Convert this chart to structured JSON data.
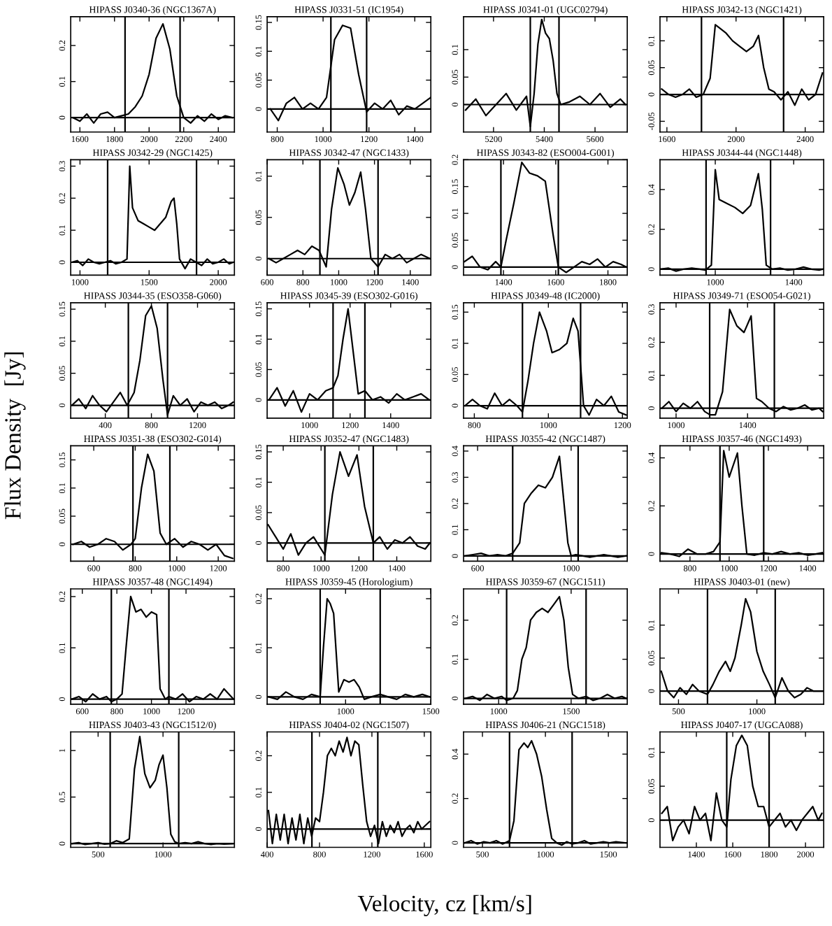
{
  "chart_data": [
    {
      "type": "line",
      "title": "HIPASS J0340-36 (NGC1367A)",
      "xlim": [
        1547,
        2493
      ],
      "xticks": [
        1600,
        1800,
        2000,
        2200,
        2400
      ],
      "ylim": [
        -0.04,
        0.28
      ],
      "yticks": [
        0,
        0.1,
        0.2
      ],
      "ref_lines": [
        {
          "axis": "x",
          "value": 1861
        },
        {
          "axis": "x",
          "value": 2179
        },
        {
          "axis": "y",
          "value": 0
        }
      ],
      "series": [
        {
          "color": "#000000",
          "x": [
            1560,
            1600,
            1640,
            1680,
            1720,
            1760,
            1800,
            1840,
            1880,
            1920,
            1960,
            2000,
            2040,
            2080,
            2120,
            2160,
            2200,
            2240,
            2280,
            2320,
            2360,
            2400,
            2440,
            2480
          ],
          "values": [
            0.0,
            -0.01,
            0.01,
            -0.015,
            0.01,
            0.015,
            0.0,
            0.005,
            0.01,
            0.03,
            0.06,
            0.12,
            0.22,
            0.26,
            0.19,
            0.06,
            0.0,
            -0.015,
            0.005,
            -0.01,
            0.01,
            -0.005,
            0.005,
            0.0
          ]
        }
      ]
    },
    {
      "type": "line",
      "title": "HIPASS J0331-51 (IC1954)",
      "xlim": [
        756,
        1470
      ],
      "xticks": [
        800,
        1000,
        1200,
        1400
      ],
      "ylim": [
        -0.04,
        0.16
      ],
      "yticks": [
        0,
        0.05,
        0.1,
        0.15
      ],
      "ref_lines": [
        {
          "axis": "x",
          "value": 1034
        },
        {
          "axis": "x",
          "value": 1190
        },
        {
          "axis": "y",
          "value": 0
        }
      ],
      "series": [
        {
          "color": "#000000",
          "x": [
            770,
            805,
            840,
            875,
            910,
            945,
            980,
            1015,
            1050,
            1085,
            1120,
            1155,
            1190,
            1225,
            1260,
            1295,
            1330,
            1365,
            1400,
            1435,
            1470
          ],
          "values": [
            0.0,
            -0.02,
            0.01,
            0.02,
            0.0,
            0.01,
            0.0,
            0.02,
            0.12,
            0.145,
            0.14,
            0.06,
            -0.005,
            0.01,
            0.0,
            0.015,
            -0.01,
            0.005,
            0.0,
            0.01,
            0.02
          ]
        }
      ]
    },
    {
      "type": "line",
      "title": "HIPASS J0341-01 (UGC02794)",
      "xlim": [
        5082,
        5727
      ],
      "xticks": [
        5200,
        5400,
        5600
      ],
      "ylim": [
        -0.05,
        0.16
      ],
      "yticks": [
        0,
        0.05,
        0.1
      ],
      "ref_lines": [
        {
          "axis": "x",
          "value": 5345
        },
        {
          "axis": "x",
          "value": 5458
        },
        {
          "axis": "y",
          "value": 0
        }
      ],
      "series": [
        {
          "color": "#000000",
          "x": [
            5090,
            5130,
            5170,
            5210,
            5250,
            5290,
            5330,
            5345,
            5360,
            5375,
            5390,
            5405,
            5420,
            5435,
            5450,
            5465,
            5500,
            5540,
            5580,
            5620,
            5660,
            5700,
            5720
          ],
          "values": [
            -0.01,
            0.01,
            -0.02,
            0.0,
            0.02,
            -0.01,
            0.015,
            -0.04,
            0.02,
            0.11,
            0.155,
            0.13,
            0.12,
            0.08,
            0.02,
            0.0,
            0.005,
            0.015,
            0.0,
            0.02,
            -0.005,
            0.01,
            0.0
          ]
        }
      ]
    },
    {
      "type": "line",
      "title": "HIPASS J0342-13 (NGC1421)",
      "xlim": [
        1560,
        2507
      ],
      "xticks": [
        1600,
        2000,
        2400
      ],
      "ylim": [
        -0.07,
        0.145
      ],
      "yticks": [
        -0.05,
        0,
        0.05,
        0.1
      ],
      "ref_lines": [
        {
          "axis": "x",
          "value": 1800
        },
        {
          "axis": "x",
          "value": 2275
        },
        {
          "axis": "y",
          "value": 0
        }
      ],
      "series": [
        {
          "color": "#000000",
          "x": [
            1570,
            1610,
            1650,
            1690,
            1730,
            1770,
            1810,
            1850,
            1880,
            1900,
            1940,
            1980,
            2020,
            2060,
            2100,
            2130,
            2160,
            2190,
            2220,
            2260,
            2300,
            2340,
            2380,
            2420,
            2460,
            2500
          ],
          "values": [
            0.01,
            0.0,
            -0.005,
            0.0,
            0.01,
            -0.005,
            0.0,
            0.03,
            0.13,
            0.125,
            0.115,
            0.1,
            0.09,
            0.08,
            0.09,
            0.11,
            0.05,
            0.01,
            0.005,
            -0.01,
            0.005,
            -0.02,
            0.01,
            -0.01,
            0.0,
            0.04
          ]
        }
      ]
    },
    {
      "type": "line",
      "title": "HIPASS J0342-29 (NGC1425)",
      "xlim": [
        933,
        2117
      ],
      "xticks": [
        1000,
        1500,
        2000
      ],
      "ylim": [
        -0.04,
        0.32
      ],
      "yticks": [
        0,
        0.1,
        0.2,
        0.3
      ],
      "ref_lines": [
        {
          "axis": "x",
          "value": 1200
        },
        {
          "axis": "x",
          "value": 1843
        },
        {
          "axis": "y",
          "value": 0
        }
      ],
      "series": [
        {
          "color": "#000000",
          "x": [
            940,
            980,
            1020,
            1060,
            1100,
            1140,
            1180,
            1220,
            1260,
            1300,
            1340,
            1360,
            1380,
            1420,
            1460,
            1500,
            1540,
            1580,
            1620,
            1660,
            1680,
            1700,
            1720,
            1760,
            1800,
            1840,
            1880,
            1920,
            1960,
            2000,
            2040,
            2080,
            2110
          ],
          "values": [
            0.0,
            0.005,
            -0.01,
            0.01,
            0.0,
            -0.005,
            0.0,
            0.005,
            -0.005,
            0.0,
            0.01,
            0.3,
            0.17,
            0.13,
            0.12,
            0.11,
            0.1,
            0.12,
            0.14,
            0.19,
            0.2,
            0.12,
            0.01,
            -0.02,
            0.01,
            0.0,
            -0.01,
            0.01,
            -0.005,
            0.0,
            0.01,
            -0.005,
            0.0
          ]
        }
      ]
    },
    {
      "type": "line",
      "title": "HIPASS J0342-47 (NGC1433)",
      "xlim": [
        600,
        1515
      ],
      "xticks": [
        600,
        800,
        1000,
        1200,
        1400
      ],
      "ylim": [
        -0.02,
        0.12
      ],
      "yticks": [
        0,
        0.05,
        0.1
      ],
      "ref_lines": [
        {
          "axis": "x",
          "value": 895
        },
        {
          "axis": "x",
          "value": 1220
        },
        {
          "axis": "y",
          "value": 0
        }
      ],
      "series": [
        {
          "color": "#000000",
          "x": [
            610,
            650,
            690,
            730,
            770,
            810,
            850,
            890,
            930,
            960,
            995,
            1030,
            1060,
            1090,
            1123,
            1150,
            1180,
            1220,
            1260,
            1300,
            1340,
            1380,
            1420,
            1460,
            1510
          ],
          "values": [
            0.0,
            -0.005,
            0.0,
            0.005,
            0.01,
            0.005,
            0.015,
            0.01,
            -0.01,
            0.06,
            0.11,
            0.09,
            0.065,
            0.08,
            0.105,
            0.06,
            0.0,
            -0.01,
            0.005,
            0.0,
            0.005,
            -0.005,
            0.0,
            0.005,
            0.0
          ]
        }
      ]
    },
    {
      "type": "line",
      "title": "HIPASS J0343-82 (ESO004-G001)",
      "xlim": [
        1247,
        1874
      ],
      "xticks": [
        1400,
        1600,
        1800
      ],
      "ylim": [
        -0.015,
        0.2
      ],
      "yticks": [
        0,
        0.05,
        0.1,
        0.15,
        0.2
      ],
      "ref_lines": [
        {
          "axis": "x",
          "value": 1390
        },
        {
          "axis": "x",
          "value": 1610
        },
        {
          "axis": "y",
          "value": 0
        }
      ],
      "series": [
        {
          "color": "#000000",
          "x": [
            1250,
            1280,
            1310,
            1340,
            1370,
            1390,
            1410,
            1440,
            1470,
            1500,
            1530,
            1560,
            1590,
            1610,
            1640,
            1670,
            1700,
            1730,
            1760,
            1790,
            1820,
            1850,
            1870
          ],
          "values": [
            0.01,
            0.02,
            0.0,
            -0.005,
            0.01,
            0.0,
            0.05,
            0.12,
            0.195,
            0.175,
            0.17,
            0.16,
            0.06,
            0.0,
            -0.01,
            0.0,
            0.01,
            0.005,
            0.015,
            0.0,
            0.01,
            0.005,
            0.0
          ]
        }
      ]
    },
    {
      "type": "line",
      "title": "HIPASS J0344-44 (NGC1448)",
      "xlim": [
        718,
        1553
      ],
      "xticks": [
        1000,
        1400
      ],
      "ylim": [
        -0.03,
        0.55
      ],
      "yticks": [
        0,
        0.2,
        0.4
      ],
      "ref_lines": [
        {
          "axis": "x",
          "value": 953
        },
        {
          "axis": "x",
          "value": 1282
        },
        {
          "axis": "y",
          "value": 0
        }
      ],
      "series": [
        {
          "color": "#000000",
          "x": [
            720,
            760,
            800,
            840,
            880,
            920,
            950,
            980,
            1000,
            1020,
            1060,
            1100,
            1140,
            1180,
            1220,
            1240,
            1260,
            1290,
            1330,
            1370,
            1410,
            1450,
            1490,
            1530,
            1550
          ],
          "values": [
            0.0,
            0.005,
            -0.01,
            0.0,
            0.005,
            0.0,
            -0.005,
            0.02,
            0.5,
            0.35,
            0.33,
            0.31,
            0.28,
            0.32,
            0.48,
            0.3,
            0.02,
            0.0,
            0.005,
            -0.005,
            0.0,
            0.01,
            0.0,
            -0.005,
            0.0
          ]
        }
      ]
    },
    {
      "type": "line",
      "title": "HIPASS J0344-35 (ESO358-G060)",
      "xlim": [
        100,
        1520
      ],
      "xticks": [
        400,
        800,
        1200
      ],
      "ylim": [
        -0.02,
        0.16
      ],
      "yticks": [
        0,
        0.05,
        0.1,
        0.15
      ],
      "ref_lines": [
        {
          "axis": "x",
          "value": 600
        },
        {
          "axis": "x",
          "value": 940
        },
        {
          "axis": "y",
          "value": 0
        }
      ],
      "series": [
        {
          "color": "#000000",
          "x": [
            110,
            170,
            230,
            290,
            350,
            410,
            470,
            530,
            590,
            650,
            700,
            750,
            800,
            850,
            900,
            940,
            990,
            1050,
            1110,
            1170,
            1230,
            1290,
            1350,
            1410,
            1470,
            1510
          ],
          "values": [
            0.0,
            0.01,
            -0.005,
            0.015,
            0.0,
            -0.01,
            0.005,
            0.02,
            0.0,
            0.02,
            0.07,
            0.14,
            0.155,
            0.12,
            0.04,
            -0.015,
            0.015,
            0.0,
            0.01,
            -0.01,
            0.005,
            0.0,
            0.005,
            -0.005,
            0.0,
            0.005
          ]
        }
      ]
    },
    {
      "type": "line",
      "title": "HIPASS J0345-39 (ESO302-G016)",
      "xlim": [
        791,
        1598
      ],
      "xticks": [
        1000,
        1200,
        1400
      ],
      "ylim": [
        -0.03,
        0.16
      ],
      "yticks": [
        0,
        0.05,
        0.1,
        0.15
      ],
      "ref_lines": [
        {
          "axis": "x",
          "value": 1116
        },
        {
          "axis": "x",
          "value": 1273
        },
        {
          "axis": "y",
          "value": 0
        }
      ],
      "series": [
        {
          "color": "#000000",
          "x": [
            800,
            840,
            880,
            920,
            960,
            1000,
            1040,
            1080,
            1116,
            1140,
            1165,
            1190,
            1215,
            1240,
            1273,
            1310,
            1350,
            1390,
            1430,
            1470,
            1510,
            1550,
            1590
          ],
          "values": [
            0.0,
            0.02,
            -0.01,
            0.015,
            -0.02,
            0.01,
            0.0,
            0.015,
            0.02,
            0.04,
            0.1,
            0.15,
            0.08,
            0.01,
            0.015,
            0.0,
            0.005,
            -0.005,
            0.01,
            0.0,
            0.005,
            0.01,
            0.0
          ]
        }
      ]
    },
    {
      "type": "line",
      "title": "HIPASS J0349-48 (IC2000)",
      "xlim": [
        771,
        1213
      ],
      "xticks": [
        800,
        1000,
        1200
      ],
      "ylim": [
        -0.02,
        0.165
      ],
      "yticks": [
        0,
        0.05,
        0.1,
        0.15
      ],
      "ref_lines": [
        {
          "axis": "x",
          "value": 930
        },
        {
          "axis": "x",
          "value": 1087
        },
        {
          "axis": "y",
          "value": 0
        }
      ],
      "series": [
        {
          "color": "#000000",
          "x": [
            775,
            795,
            815,
            835,
            855,
            875,
            895,
            915,
            930,
            945,
            960,
            976,
            995,
            1010,
            1030,
            1050,
            1067,
            1080,
            1095,
            1110,
            1130,
            1150,
            1170,
            1190,
            1210
          ],
          "values": [
            0.0,
            0.01,
            0.0,
            -0.005,
            0.02,
            0.0,
            0.01,
            0.0,
            -0.01,
            0.04,
            0.1,
            0.15,
            0.12,
            0.085,
            0.09,
            0.1,
            0.14,
            0.12,
            0.0,
            -0.015,
            0.01,
            0.0,
            0.015,
            -0.01,
            -0.015
          ]
        }
      ]
    },
    {
      "type": "line",
      "title": "HIPASS J0349-71 (ESO054-G021)",
      "xlim": [
        910,
        1826
      ],
      "xticks": [
        1000,
        1400
      ],
      "ylim": [
        -0.03,
        0.32
      ],
      "yticks": [
        0,
        0.1,
        0.2,
        0.3
      ],
      "ref_lines": [
        {
          "axis": "x",
          "value": 1188
        },
        {
          "axis": "x",
          "value": 1550
        },
        {
          "axis": "y",
          "value": 0
        }
      ],
      "series": [
        {
          "color": "#000000",
          "x": [
            920,
            960,
            1000,
            1040,
            1080,
            1120,
            1160,
            1190,
            1220,
            1260,
            1300,
            1340,
            1380,
            1420,
            1450,
            1480,
            1520,
            1560,
            1600,
            1640,
            1680,
            1720,
            1760,
            1800,
            1820
          ],
          "values": [
            0.0,
            0.02,
            -0.01,
            0.015,
            0.0,
            0.02,
            -0.01,
            -0.02,
            -0.02,
            0.05,
            0.3,
            0.25,
            0.23,
            0.28,
            0.03,
            0.02,
            0.0,
            -0.01,
            0.005,
            -0.005,
            0.0,
            0.01,
            -0.005,
            0.0,
            -0.01
          ]
        }
      ]
    },
    {
      "type": "line",
      "title": "HIPASS J0351-38 (ESO302-G014)",
      "ylabel": "Flux Density  [Jy]",
      "xlim": [
        489,
        1278
      ],
      "xticks": [
        600,
        800,
        1000,
        1200
      ],
      "ylim": [
        -0.03,
        0.175
      ],
      "yticks": [
        0,
        0.05,
        0.1,
        0.15
      ],
      "ref_lines": [
        {
          "axis": "x",
          "value": 789
        },
        {
          "axis": "x",
          "value": 967
        },
        {
          "axis": "y",
          "value": 0
        }
      ],
      "series": [
        {
          "color": "#000000",
          "x": [
            500,
            540,
            580,
            620,
            660,
            700,
            740,
            780,
            800,
            830,
            860,
            890,
            920,
            950,
            990,
            1030,
            1070,
            1110,
            1150,
            1190,
            1230,
            1270
          ],
          "values": [
            0.0,
            0.005,
            -0.005,
            0.0,
            0.01,
            0.005,
            -0.01,
            0.0,
            0.01,
            0.1,
            0.16,
            0.13,
            0.02,
            0.0,
            0.01,
            -0.005,
            0.005,
            0.0,
            -0.01,
            0.0,
            -0.02,
            -0.025
          ]
        }
      ]
    },
    {
      "type": "line",
      "title": "HIPASS J0352-47 (NGC1483)",
      "xlim": [
        715,
        1580
      ],
      "xticks": [
        800,
        1000,
        1200,
        1400
      ],
      "ylim": [
        -0.03,
        0.16
      ],
      "yticks": [
        0,
        0.05,
        0.1,
        0.15
      ],
      "ref_lines": [
        {
          "axis": "x",
          "value": 1020
        },
        {
          "axis": "x",
          "value": 1276
        },
        {
          "axis": "y",
          "value": 0
        }
      ],
      "series": [
        {
          "color": "#000000",
          "x": [
            720,
            760,
            800,
            840,
            880,
            920,
            960,
            1000,
            1020,
            1060,
            1100,
            1145,
            1190,
            1230,
            1276,
            1310,
            1350,
            1390,
            1430,
            1470,
            1510,
            1550,
            1575
          ],
          "values": [
            0.03,
            0.01,
            -0.01,
            0.015,
            -0.02,
            0.0,
            0.01,
            -0.01,
            -0.02,
            0.08,
            0.15,
            0.11,
            0.145,
            0.06,
            0.0,
            0.01,
            -0.01,
            0.005,
            0.0,
            0.01,
            -0.005,
            -0.01,
            0.0
          ]
        }
      ]
    },
    {
      "type": "line",
      "title": "HIPASS J0355-42 (NGC1487)",
      "xlim": [
        540,
        1240
      ],
      "xticks": [
        600,
        1000
      ],
      "ylim": [
        -0.02,
        0.42
      ],
      "yticks": [
        0,
        0.1,
        0.2,
        0.3,
        0.4
      ],
      "ref_lines": [
        {
          "axis": "x",
          "value": 750
        },
        {
          "axis": "x",
          "value": 1030
        },
        {
          "axis": "y",
          "value": 0
        }
      ],
      "series": [
        {
          "color": "#000000",
          "x": [
            545,
            580,
            615,
            650,
            685,
            720,
            750,
            780,
            800,
            830,
            860,
            890,
            920,
            950,
            986,
            1000,
            1020,
            1050,
            1080,
            1110,
            1140,
            1170,
            1200,
            1235
          ],
          "values": [
            0.0,
            0.005,
            0.01,
            0.0,
            0.005,
            0.0,
            0.01,
            0.05,
            0.2,
            0.24,
            0.27,
            0.26,
            0.3,
            0.38,
            0.05,
            0.0,
            0.005,
            0.0,
            -0.005,
            0.0,
            0.005,
            0.0,
            -0.005,
            0.0
          ]
        }
      ]
    },
    {
      "type": "line",
      "title": "HIPASS J0357-46 (NGC1493)",
      "xlim": [
        647,
        1482
      ],
      "xticks": [
        800,
        1000,
        1200,
        1400
      ],
      "ylim": [
        -0.03,
        0.45
      ],
      "yticks": [
        0,
        0.2,
        0.4
      ],
      "ref_lines": [
        {
          "axis": "x",
          "value": 953
        },
        {
          "axis": "x",
          "value": 1176
        },
        {
          "axis": "y",
          "value": 0
        }
      ],
      "series": [
        {
          "color": "#000000",
          "x": [
            655,
            700,
            745,
            790,
            835,
            880,
            920,
            953,
            972,
            1000,
            1042,
            1065,
            1090,
            1130,
            1176,
            1220,
            1265,
            1310,
            1355,
            1400,
            1440,
            1475
          ],
          "values": [
            0.005,
            0.0,
            -0.01,
            0.02,
            0.0,
            0.0,
            0.01,
            0.05,
            0.43,
            0.32,
            0.42,
            0.2,
            0.0,
            -0.005,
            0.005,
            0.0,
            0.01,
            0.0,
            0.005,
            -0.005,
            0.0,
            0.005
          ]
        }
      ]
    },
    {
      "type": "line",
      "title": "HIPASS J0357-48 (NGC1494)",
      "xlim": [
        533,
        1480
      ],
      "xticks": [
        600,
        800,
        1000,
        1200
      ],
      "ylim": [
        -0.01,
        0.215
      ],
      "yticks": [
        0,
        0.1,
        0.2
      ],
      "ref_lines": [
        {
          "axis": "x",
          "value": 768
        },
        {
          "axis": "x",
          "value": 1101
        },
        {
          "axis": "y",
          "value": 0
        }
      ],
      "series": [
        {
          "color": "#000000",
          "x": [
            540,
            580,
            620,
            660,
            700,
            740,
            768,
            800,
            830,
            853,
            880,
            910,
            940,
            970,
            1000,
            1030,
            1050,
            1080,
            1101,
            1140,
            1180,
            1220,
            1260,
            1300,
            1340,
            1380,
            1420,
            1475
          ],
          "values": [
            0.0,
            0.005,
            -0.005,
            0.01,
            0.0,
            0.005,
            -0.005,
            0.0,
            0.01,
            0.1,
            0.2,
            0.17,
            0.175,
            0.16,
            0.17,
            0.165,
            0.02,
            0.0,
            0.005,
            0.0,
            0.01,
            -0.005,
            0.005,
            0.0,
            0.01,
            0.0,
            0.02,
            0.0
          ]
        }
      ]
    },
    {
      "type": "line",
      "title": "HIPASS J0359-45 (Horologium)",
      "xlim": [
        540,
        1500
      ],
      "xticks": [
        1000,
        1500
      ],
      "ylim": [
        -0.015,
        0.22
      ],
      "yticks": [
        0,
        0.1,
        0.2
      ],
      "ref_lines": [
        {
          "axis": "x",
          "value": 851
        },
        {
          "axis": "x",
          "value": 1203
        },
        {
          "axis": "y",
          "value": 0
        }
      ],
      "series": [
        {
          "color": "#000000",
          "x": [
            550,
            600,
            650,
            700,
            750,
            800,
            851,
            870,
            892,
            910,
            930,
            960,
            990,
            1020,
            1050,
            1080,
            1110,
            1150,
            1203,
            1250,
            1300,
            1350,
            1400,
            1450,
            1495
          ],
          "values": [
            0.0,
            -0.005,
            0.01,
            0.0,
            -0.005,
            0.005,
            0.0,
            0.1,
            0.2,
            0.19,
            0.17,
            0.01,
            0.035,
            0.03,
            0.035,
            0.02,
            -0.005,
            0.0,
            0.005,
            0.0,
            -0.005,
            0.005,
            0.0,
            0.005,
            0.0
          ]
        }
      ]
    },
    {
      "type": "line",
      "title": "HIPASS J0359-67 (NGC1511)",
      "xlim": [
        758,
        1887
      ],
      "xticks": [
        1000,
        1500
      ],
      "ylim": [
        -0.015,
        0.28
      ],
      "yticks": [
        0,
        0.1,
        0.2
      ],
      "ref_lines": [
        {
          "axis": "x",
          "value": 1055
        },
        {
          "axis": "x",
          "value": 1603
        },
        {
          "axis": "y",
          "value": 0
        }
      ],
      "series": [
        {
          "color": "#000000",
          "x": [
            770,
            820,
            870,
            920,
            970,
            1020,
            1055,
            1100,
            1129,
            1160,
            1190,
            1220,
            1260,
            1300,
            1340,
            1380,
            1419,
            1450,
            1480,
            1510,
            1550,
            1603,
            1650,
            1700,
            1750,
            1800,
            1850,
            1880
          ],
          "values": [
            0.0,
            0.005,
            -0.005,
            0.01,
            0.0,
            0.005,
            -0.005,
            0.0,
            0.02,
            0.1,
            0.13,
            0.2,
            0.22,
            0.23,
            0.22,
            0.24,
            0.26,
            0.2,
            0.08,
            0.01,
            0.0,
            0.005,
            -0.005,
            0.0,
            0.01,
            0.0,
            0.005,
            0.0
          ]
        }
      ]
    },
    {
      "type": "line",
      "title": "HIPASS J0403-01 (new)",
      "xlim": [
        382,
        1426
      ],
      "xticks": [
        500,
        1000
      ],
      "ylim": [
        -0.02,
        0.155
      ],
      "yticks": [
        0,
        0.05,
        0.1
      ],
      "ref_lines": [
        {
          "axis": "x",
          "value": 685
        },
        {
          "axis": "x",
          "value": 1117
        },
        {
          "axis": "y",
          "value": 0
        }
      ],
      "series": [
        {
          "color": "#000000",
          "x": [
            390,
            430,
            470,
            510,
            550,
            590,
            630,
            685,
            720,
            760,
            800,
            830,
            860,
            900,
            928,
            960,
            1000,
            1040,
            1080,
            1117,
            1160,
            1200,
            1240,
            1280,
            1320,
            1360,
            1420
          ],
          "values": [
            0.03,
            0.0,
            -0.01,
            0.005,
            -0.005,
            0.01,
            0.0,
            -0.005,
            0.01,
            0.03,
            0.045,
            0.03,
            0.05,
            0.1,
            0.14,
            0.12,
            0.06,
            0.03,
            0.01,
            -0.01,
            0.02,
            0.0,
            -0.01,
            -0.005,
            0.005,
            0.0,
            0.0
          ]
        }
      ]
    },
    {
      "type": "line",
      "title": "HIPASS J0403-43 (NGC1512/0)",
      "xlim": [
        289,
        1550
      ],
      "xticks": [
        500,
        1000
      ],
      "ylim": [
        -0.04,
        1.2
      ],
      "yticks": [
        0,
        0.5,
        1
      ],
      "ref_lines": [
        {
          "axis": "x",
          "value": 593
        },
        {
          "axis": "x",
          "value": 1121
        },
        {
          "axis": "y",
          "value": 0
        }
      ],
      "series": [
        {
          "color": "#000000",
          "x": [
            300,
            350,
            400,
            450,
            500,
            550,
            593,
            640,
            690,
            740,
            780,
            821,
            860,
            900,
            940,
            970,
            1000,
            1030,
            1060,
            1090,
            1121,
            1170,
            1220,
            1270,
            1320,
            1370,
            1420,
            1470,
            1540
          ],
          "values": [
            0.0,
            0.01,
            -0.01,
            0.0,
            0.01,
            -0.005,
            0.0,
            0.03,
            0.01,
            0.05,
            0.8,
            1.15,
            0.75,
            0.6,
            0.68,
            0.85,
            0.95,
            0.6,
            0.1,
            0.02,
            0.0,
            0.01,
            0.0,
            0.02,
            0.0,
            -0.01,
            0.0,
            -0.005,
            0.0
          ]
        }
      ]
    },
    {
      "type": "line",
      "title": "HIPASS J0404-02 (NGC1507)",
      "xlabel": "Velocity, cz [km/s]",
      "xlim": [
        400,
        1650
      ],
      "xticks": [
        400,
        800,
        1200,
        1600
      ],
      "ylim": [
        -0.05,
        0.265
      ],
      "yticks": [
        0,
        0.1,
        0.2
      ],
      "ref_lines": [
        {
          "axis": "x",
          "value": 742
        },
        {
          "axis": "x",
          "value": 1245
        },
        {
          "axis": "y",
          "value": 0
        }
      ],
      "series": [
        {
          "color": "#000000",
          "x": [
            410,
            440,
            470,
            500,
            530,
            560,
            590,
            620,
            650,
            680,
            710,
            740,
            770,
            800,
            830,
            860,
            890,
            920,
            950,
            980,
            1010,
            1040,
            1070,
            1100,
            1130,
            1160,
            1190,
            1220,
            1250,
            1280,
            1310,
            1340,
            1370,
            1400,
            1430,
            1460,
            1490,
            1520,
            1550,
            1580,
            1610,
            1640
          ],
          "values": [
            0.05,
            -0.04,
            0.04,
            -0.03,
            0.04,
            -0.04,
            0.03,
            -0.03,
            0.04,
            -0.04,
            0.03,
            -0.02,
            0.03,
            0.02,
            0.1,
            0.2,
            0.22,
            0.2,
            0.24,
            0.21,
            0.25,
            0.2,
            0.24,
            0.23,
            0.12,
            0.02,
            -0.02,
            0.01,
            -0.04,
            0.02,
            -0.02,
            0.01,
            -0.01,
            0.02,
            -0.02,
            0.0,
            0.01,
            -0.01,
            0.02,
            0.0,
            0.01,
            0.02
          ]
        }
      ]
    },
    {
      "type": "line",
      "title": "HIPASS J0406-21 (NGC1518)",
      "xlim": [
        350,
        1650
      ],
      "xticks": [
        500,
        1000,
        1500
      ],
      "ylim": [
        -0.02,
        0.5
      ],
      "yticks": [
        0,
        0.2,
        0.4
      ],
      "ref_lines": [
        {
          "axis": "x",
          "value": 715
        },
        {
          "axis": "x",
          "value": 1212
        },
        {
          "axis": "y",
          "value": 0
        }
      ],
      "series": [
        {
          "color": "#000000",
          "x": [
            360,
            410,
            460,
            510,
            560,
            610,
            660,
            715,
            750,
            790,
            830,
            860,
            890,
            930,
            970,
            1010,
            1050,
            1090,
            1130,
            1170,
            1212,
            1260,
            1310,
            1360,
            1410,
            1460,
            1510,
            1560,
            1640
          ],
          "values": [
            0.0,
            0.01,
            -0.005,
            0.005,
            0.0,
            0.01,
            -0.005,
            0.01,
            0.1,
            0.42,
            0.45,
            0.43,
            0.46,
            0.4,
            0.3,
            0.15,
            0.02,
            0.0,
            -0.01,
            0.005,
            -0.005,
            0.0,
            0.01,
            -0.005,
            0.0,
            0.005,
            0.0,
            0.005,
            0.0
          ]
        }
      ]
    },
    {
      "type": "line",
      "title": "HIPASS J0407-17 (UGCA088)",
      "xlim": [
        1200,
        2100
      ],
      "xticks": [
        1400,
        1600,
        1800,
        2000
      ],
      "ylim": [
        -0.04,
        0.13
      ],
      "yticks": [
        0,
        0.05,
        0.1
      ],
      "ref_lines": [
        {
          "axis": "x",
          "value": 1567
        },
        {
          "axis": "x",
          "value": 1800
        },
        {
          "axis": "y",
          "value": 0
        }
      ],
      "series": [
        {
          "color": "#000000",
          "x": [
            1210,
            1240,
            1270,
            1300,
            1330,
            1360,
            1390,
            1420,
            1450,
            1480,
            1510,
            1540,
            1567,
            1590,
            1620,
            1650,
            1680,
            1710,
            1740,
            1770,
            1800,
            1830,
            1860,
            1890,
            1920,
            1950,
            1980,
            2010,
            2040,
            2070,
            2090
          ],
          "values": [
            0.01,
            0.02,
            -0.03,
            -0.01,
            0.0,
            -0.02,
            0.02,
            0.0,
            0.01,
            -0.03,
            0.04,
            0.0,
            -0.01,
            0.06,
            0.11,
            0.125,
            0.11,
            0.05,
            0.02,
            0.02,
            -0.01,
            0.0,
            0.01,
            -0.01,
            0.0,
            -0.015,
            0.0,
            0.01,
            0.02,
            0.0,
            0.01
          ]
        }
      ]
    }
  ]
}
